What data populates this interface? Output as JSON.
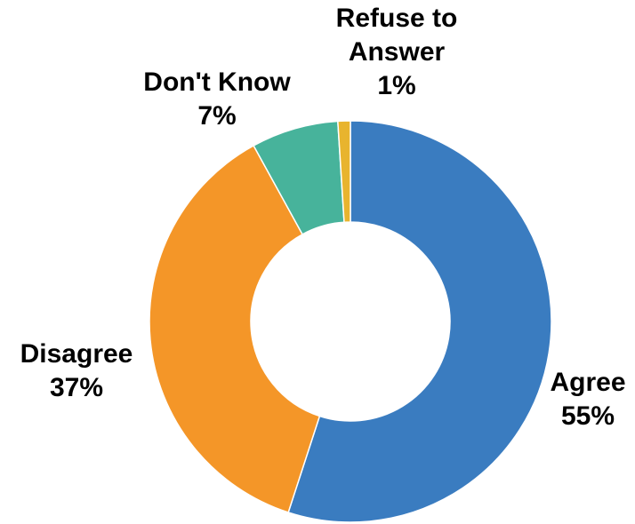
{
  "chart_data": {
    "type": "pie",
    "variant": "donut",
    "title": "",
    "categories": [
      "Agree",
      "Disagree",
      "Don't Know",
      "Refuse to Answer"
    ],
    "values": [
      55,
      37,
      7,
      1
    ],
    "labels": [
      {
        "name_lines": [
          "Agree"
        ],
        "value_text": "55%"
      },
      {
        "name_lines": [
          "Disagree"
        ],
        "value_text": "37%"
      },
      {
        "name_lines": [
          "Don't Know"
        ],
        "value_text": "7%"
      },
      {
        "name_lines": [
          "Refuse to",
          "Answer"
        ],
        "value_text": "1%"
      }
    ],
    "colors": [
      "#3a7cc0",
      "#f49628",
      "#47b39b",
      "#e8b42e"
    ],
    "start_angle_deg": 0,
    "direction": "clockwise",
    "legend": "none"
  }
}
